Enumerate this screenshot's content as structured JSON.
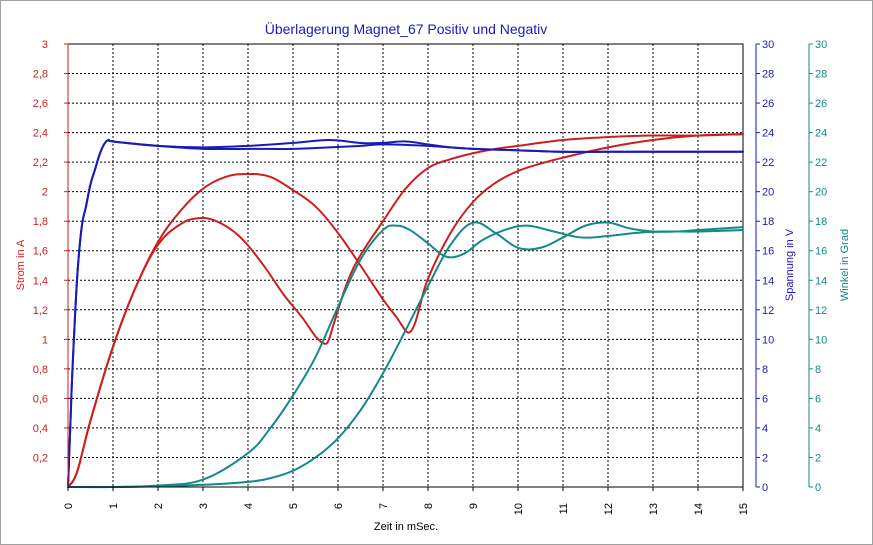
{
  "chart_data": {
    "type": "line",
    "title": "Überlagerung Magnet_67 Positiv und Negativ",
    "xlabel": "Zeit in mSec.",
    "x_ticks": [
      "0",
      "1",
      "2",
      "3",
      "4",
      "5",
      "6",
      "7",
      "8",
      "9",
      "10",
      "11",
      "12",
      "13",
      "14",
      "15"
    ],
    "xlim": [
      0,
      15
    ],
    "grid": true,
    "axes": {
      "strom": {
        "label": "Strom in A",
        "position": "left",
        "color": "#cc1f1f",
        "ylim": [
          0,
          3
        ],
        "ticks": [
          "0,2",
          "0,4",
          "0,6",
          "0,8",
          "1",
          "1,2",
          "1,4",
          "1,6",
          "1,8",
          "2",
          "2,2",
          "2,4",
          "2,6",
          "2,8",
          "3"
        ],
        "tick_values": [
          0.2,
          0.4,
          0.6,
          0.8,
          1,
          1.2,
          1.4,
          1.6,
          1.8,
          2,
          2.2,
          2.4,
          2.6,
          2.8,
          3
        ]
      },
      "spannung": {
        "label": "Spannung in V",
        "position": "right",
        "color": "#1a1ab8",
        "ylim": [
          0,
          30
        ],
        "ticks": [
          "0",
          "2",
          "4",
          "6",
          "8",
          "10",
          "12",
          "14",
          "16",
          "18",
          "20",
          "22",
          "24",
          "26",
          "28",
          "30"
        ],
        "tick_values": [
          0,
          2,
          4,
          6,
          8,
          10,
          12,
          14,
          16,
          18,
          20,
          22,
          24,
          26,
          28,
          30
        ]
      },
      "winkel": {
        "label": "Winkel in Grad",
        "position": "right-outer",
        "color": "#138a86",
        "ylim": [
          0,
          30
        ],
        "ticks": [
          "0",
          "2",
          "4",
          "6",
          "8",
          "10",
          "12",
          "14",
          "16",
          "18",
          "20",
          "22",
          "24",
          "26",
          "28",
          "30"
        ],
        "tick_values": [
          0,
          2,
          4,
          6,
          8,
          10,
          12,
          14,
          16,
          18,
          20,
          22,
          24,
          26,
          28,
          30
        ]
      }
    },
    "series": [
      {
        "axis": "strom",
        "color": "#cc1f1f",
        "x": [
          0,
          0.2,
          0.5,
          1,
          1.5,
          2,
          2.5,
          2.9,
          3.3,
          3.8,
          4.3,
          4.8,
          5.2,
          5.5,
          5.7,
          5.8,
          5.9,
          6.2,
          6.5,
          7,
          7.5,
          8,
          8.5,
          9,
          9.5,
          10,
          11,
          12,
          13,
          14,
          15
        ],
        "y": [
          0,
          0.1,
          0.45,
          0.95,
          1.35,
          1.64,
          1.78,
          1.82,
          1.8,
          1.7,
          1.52,
          1.3,
          1.15,
          1.02,
          0.97,
          1.0,
          1.1,
          1.38,
          1.57,
          1.8,
          2.02,
          2.16,
          2.22,
          2.26,
          2.29,
          2.31,
          2.35,
          2.37,
          2.38,
          2.38,
          2.39
        ]
      },
      {
        "axis": "strom",
        "color": "#cc1f1f",
        "x": [
          0,
          0.2,
          0.5,
          1,
          1.5,
          2,
          2.5,
          3,
          3.5,
          4,
          4.5,
          5,
          5.5,
          6,
          6.5,
          7,
          7.3,
          7.5,
          7.6,
          7.7,
          7.8,
          8,
          8.5,
          9,
          9.5,
          10,
          10.5,
          11,
          12,
          13,
          14,
          15
        ],
        "y": [
          0,
          0.1,
          0.45,
          0.95,
          1.35,
          1.66,
          1.87,
          2.02,
          2.1,
          2.12,
          2.1,
          2.01,
          1.9,
          1.72,
          1.5,
          1.27,
          1.15,
          1.06,
          1.05,
          1.1,
          1.2,
          1.41,
          1.72,
          1.93,
          2.06,
          2.14,
          2.19,
          2.23,
          2.3,
          2.35,
          2.38,
          2.39
        ]
      },
      {
        "axis": "spannung",
        "color": "#1a1ab8",
        "x": [
          0,
          0.05,
          0.1,
          0.2,
          0.3,
          0.4,
          0.5,
          0.6,
          0.7,
          0.8,
          0.9,
          1,
          2,
          3,
          4,
          5,
          5.8,
          6.5,
          7,
          8,
          9,
          10,
          11,
          12,
          13,
          14,
          15
        ],
        "y": [
          0,
          4,
          8,
          14,
          17.5,
          19,
          20.5,
          21.5,
          22.5,
          23.2,
          23.5,
          23.4,
          23.1,
          22.9,
          22.9,
          22.9,
          23,
          23.1,
          23.2,
          23.1,
          22.9,
          22.8,
          22.7,
          22.7,
          22.7,
          22.7,
          22.7
        ]
      },
      {
        "axis": "spannung",
        "color": "#1a1ab8",
        "x": [
          0,
          0.05,
          0.1,
          0.2,
          0.3,
          0.4,
          0.5,
          0.6,
          0.7,
          0.8,
          0.9,
          1,
          2,
          3,
          4,
          5,
          5.8,
          6.5,
          7,
          7.5,
          8,
          8.5,
          9,
          10,
          11,
          12,
          13,
          14,
          15
        ],
        "y": [
          0,
          4,
          8,
          14,
          17.5,
          19,
          20.5,
          21.5,
          22.5,
          23.2,
          23.5,
          23.4,
          23.1,
          23.0,
          23.1,
          23.3,
          23.5,
          23.3,
          23.3,
          23.4,
          23.2,
          23.0,
          22.9,
          22.8,
          22.7,
          22.7,
          22.7,
          22.7,
          22.7
        ]
      },
      {
        "axis": "winkel",
        "color": "#138a86",
        "x": [
          0,
          1,
          2,
          3,
          4,
          4.5,
          5,
          5.5,
          6,
          6.5,
          7,
          7.3,
          7.6,
          8,
          8.4,
          8.8,
          9.2,
          9.7,
          10.2,
          10.8,
          11.4,
          12,
          12.6,
          13.2,
          14,
          15
        ],
        "y": [
          0,
          0,
          0.1,
          0.5,
          2.3,
          4.0,
          6.2,
          8.8,
          12.2,
          15.4,
          17.4,
          17.7,
          17.4,
          16.5,
          15.6,
          15.8,
          16.7,
          17.4,
          17.7,
          17.3,
          16.9,
          17.0,
          17.2,
          17.3,
          17.3,
          17.4
        ]
      },
      {
        "axis": "winkel",
        "color": "#138a86",
        "x": [
          0,
          1,
          2,
          3,
          4,
          4.5,
          5,
          5.5,
          6,
          6.5,
          7,
          7.5,
          8,
          8.5,
          9,
          9.5,
          10,
          10.5,
          11,
          11.5,
          12,
          12.5,
          13,
          13.5,
          14,
          15
        ],
        "y": [
          0,
          0,
          0.05,
          0.15,
          0.35,
          0.6,
          1.1,
          2.0,
          3.3,
          5.2,
          7.7,
          10.6,
          13.6,
          16.4,
          17.9,
          17.2,
          16.2,
          16.2,
          16.9,
          17.7,
          17.9,
          17.5,
          17.3,
          17.3,
          17.4,
          17.6
        ]
      }
    ]
  }
}
